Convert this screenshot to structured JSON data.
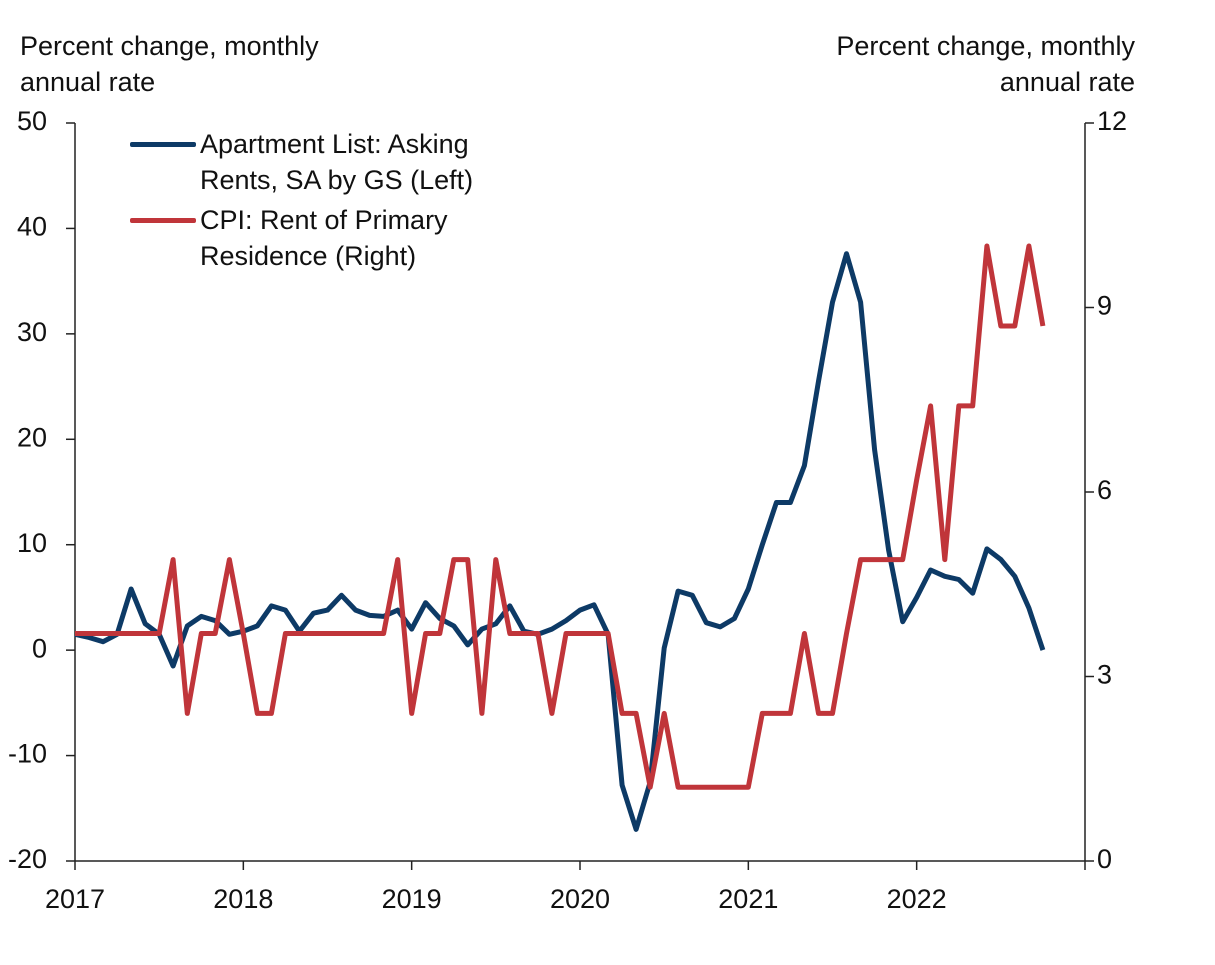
{
  "chart_data": {
    "type": "line",
    "y_label": "Percent change, monthly annual rate",
    "y2_label": "Percent change, monthly annual rate",
    "x": [
      2017,
      2017.083,
      2017.167,
      2017.25,
      2017.333,
      2017.417,
      2017.5,
      2017.583,
      2017.667,
      2017.75,
      2017.833,
      2017.917,
      2018,
      2018.083,
      2018.167,
      2018.25,
      2018.333,
      2018.417,
      2018.5,
      2018.583,
      2018.667,
      2018.75,
      2018.833,
      2018.917,
      2019,
      2019.083,
      2019.167,
      2019.25,
      2019.333,
      2019.417,
      2019.5,
      2019.583,
      2019.667,
      2019.75,
      2019.833,
      2019.917,
      2020,
      2020.083,
      2020.167,
      2020.25,
      2020.333,
      2020.417,
      2020.5,
      2020.583,
      2020.667,
      2020.75,
      2020.833,
      2020.917,
      2021,
      2021.083,
      2021.167,
      2021.25,
      2021.333,
      2021.417,
      2021.5,
      2021.583,
      2021.667,
      2021.75,
      2021.833,
      2021.917,
      2022,
      2022.083,
      2022.167,
      2022.25,
      2022.333,
      2022.417,
      2022.5,
      2022.583,
      2022.667,
      2022.75
    ],
    "series": [
      {
        "name": "Apartment List: Asking Rents, SA by GS (Left)",
        "color": "#0d3a66",
        "axis": "y",
        "values": [
          1.5,
          1.2,
          0.8,
          1.5,
          5.8,
          2.5,
          1.5,
          -1.5,
          2.3,
          3.2,
          2.8,
          1.5,
          1.8,
          2.3,
          4.2,
          3.8,
          1.8,
          3.5,
          3.8,
          5.2,
          3.8,
          3.3,
          3.2,
          3.8,
          2.0,
          4.5,
          3.0,
          2.3,
          0.5,
          2.0,
          2.5,
          4.2,
          1.8,
          1.5,
          2.0,
          2.8,
          3.8,
          4.3,
          1.5,
          -12.8,
          -17.0,
          -12.5,
          0.2,
          5.6,
          5.2,
          2.6,
          2.2,
          3.0,
          5.8,
          10.0,
          14.0,
          14.0,
          17.5,
          25.5,
          33.0,
          37.6,
          33.0,
          19.0,
          9.5,
          2.7,
          5.0,
          7.6,
          7.0,
          6.7,
          5.4,
          9.6,
          8.6,
          7.0,
          4.0,
          0.0
        ]
      },
      {
        "name": "CPI: Rent of Primary Residence (Right)",
        "color": "#c0353a",
        "axis": "y2",
        "values": [
          3.7,
          3.7,
          3.7,
          3.7,
          3.7,
          3.7,
          3.7,
          4.9,
          2.4,
          3.7,
          3.7,
          4.9,
          3.7,
          2.4,
          2.4,
          3.7,
          3.7,
          3.7,
          3.7,
          3.7,
          3.7,
          3.7,
          3.7,
          4.9,
          2.4,
          3.7,
          3.7,
          4.9,
          4.9,
          2.4,
          4.9,
          3.7,
          3.7,
          3.7,
          2.4,
          3.7,
          3.7,
          3.7,
          3.7,
          2.4,
          2.4,
          1.2,
          2.4,
          1.2,
          1.2,
          1.2,
          1.2,
          1.2,
          1.2,
          2.4,
          2.4,
          2.4,
          3.7,
          2.4,
          2.4,
          3.7,
          4.9,
          4.9,
          4.9,
          4.9,
          6.2,
          7.4,
          4.9,
          7.4,
          7.4,
          10.0,
          8.7,
          8.7,
          10.0,
          8.7
        ]
      }
    ],
    "xlim": [
      2017,
      2023
    ],
    "xticks": [
      2017,
      2018,
      2019,
      2020,
      2021,
      2022
    ],
    "ylim": [
      -20,
      50
    ],
    "yticks": [
      -20,
      -10,
      0,
      10,
      20,
      30,
      40,
      50
    ],
    "y2lim": [
      0,
      12
    ],
    "y2ticks": [
      0,
      3,
      6,
      9,
      12
    ],
    "grid": false,
    "legend": "upper left"
  }
}
